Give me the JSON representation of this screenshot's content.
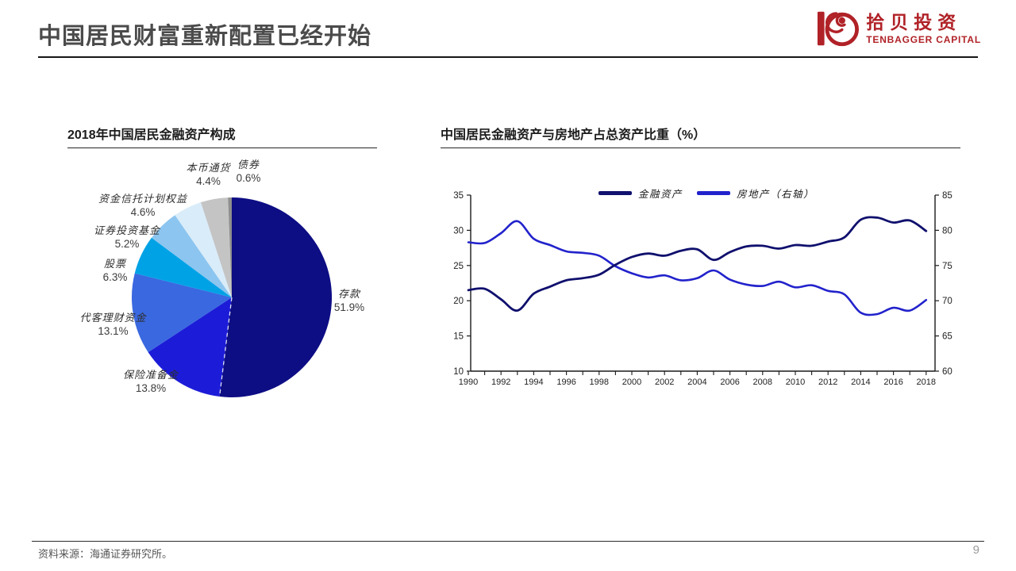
{
  "header": {
    "title": "中国居民财富重新配置已经开始"
  },
  "logo": {
    "name_cn": "拾贝投资",
    "name_en": "TENBAGGER CAPITAL",
    "brand_color": "#B02227"
  },
  "footer": {
    "source": "资料来源：海通证券研究所。",
    "page": "9"
  },
  "chart_data": [
    {
      "type": "pie",
      "title": "2018年中国居民金融资产构成",
      "labels": [
        "存款",
        "保险准备金",
        "代客理财资金",
        "股票",
        "证券投资基金",
        "资金信托计划权益",
        "本币通货",
        "债券"
      ],
      "values": [
        51.9,
        13.8,
        13.1,
        6.3,
        5.2,
        4.6,
        4.4,
        0.6
      ],
      "value_labels": [
        "51.9%",
        "13.8%",
        "13.1%",
        "6.3%",
        "5.2%",
        "4.6%",
        "4.4%",
        "0.6%"
      ],
      "colors": [
        "#0d0d84",
        "#1c1cd8",
        "#3a68e0",
        "#00a2e6",
        "#8cc5ef",
        "#d9ecf9",
        "#c4c4c4",
        "#8f8f8f"
      ],
      "start_angle": "top",
      "direction": "clockwise"
    },
    {
      "type": "line",
      "title": "中国居民金融资产与房地产占总资产比重（%）",
      "x": [
        1990,
        1991,
        1992,
        1993,
        1994,
        1995,
        1996,
        1997,
        1998,
        1999,
        2000,
        2001,
        2002,
        2003,
        2004,
        2005,
        2006,
        2007,
        2008,
        2009,
        2010,
        2011,
        2012,
        2013,
        2014,
        2015,
        2016,
        2017,
        2018
      ],
      "x_tick_labels": [
        "1990",
        "1992",
        "1994",
        "1996",
        "1998",
        "2000",
        "2002",
        "2004",
        "2006",
        "2008",
        "2010",
        "2012",
        "2014",
        "2016",
        "2018"
      ],
      "left_axis": {
        "min": 10,
        "max": 35,
        "ticks": [
          35,
          30,
          25,
          20,
          15,
          10
        ]
      },
      "right_axis": {
        "min": 60,
        "max": 85,
        "ticks": [
          85,
          80,
          75,
          70,
          65,
          60
        ]
      },
      "grid": false,
      "legend_position": "top-center",
      "series": [
        {
          "name": "金融资产",
          "axis": "left",
          "color": "#10106e",
          "values": [
            21.5,
            21.7,
            20.2,
            18.6,
            21.0,
            22.0,
            22.9,
            23.2,
            23.7,
            25.1,
            26.2,
            26.7,
            26.4,
            27.1,
            27.3,
            25.8,
            26.9,
            27.7,
            27.8,
            27.4,
            27.9,
            27.8,
            28.4,
            29.0,
            31.5,
            31.8,
            31.1,
            31.4,
            29.9
          ]
        },
        {
          "name": "房地产（右轴）",
          "axis": "right",
          "color": "#2222cc",
          "values": [
            78.3,
            78.2,
            79.6,
            81.3,
            78.8,
            77.9,
            77.0,
            76.8,
            76.4,
            74.9,
            73.9,
            73.3,
            73.6,
            72.9,
            73.2,
            74.3,
            73.0,
            72.3,
            72.1,
            72.7,
            71.9,
            72.2,
            71.4,
            70.9,
            68.3,
            68.1,
            69.0,
            68.6,
            70.1
          ]
        }
      ]
    }
  ]
}
